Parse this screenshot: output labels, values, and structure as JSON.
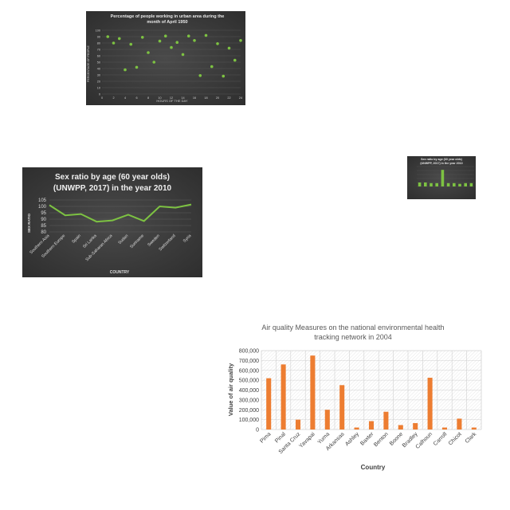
{
  "charts": {
    "scatter": {
      "type": "scatter",
      "title_line1": "Percentage of people working in urban area during the",
      "title_line2": "month of April 1950",
      "xlabel": "HOURS OF THE DAY",
      "ylabel": "PERCENTAGE OF PEOPLE",
      "xlim": [
        0,
        24
      ],
      "ylim": [
        0,
        100
      ],
      "xticks": [
        0,
        2,
        4,
        6,
        8,
        10,
        12,
        14,
        16,
        18,
        20,
        22,
        24
      ],
      "yticks": [
        0,
        10,
        20,
        30,
        40,
        50,
        60,
        70,
        80,
        90,
        100
      ],
      "grid": "horizontal",
      "marker_color": "#7dc242",
      "points": [
        {
          "x": 1,
          "y": 90
        },
        {
          "x": 2,
          "y": 80
        },
        {
          "x": 3,
          "y": 87
        },
        {
          "x": 4,
          "y": 38
        },
        {
          "x": 5,
          "y": 78
        },
        {
          "x": 6,
          "y": 42
        },
        {
          "x": 7,
          "y": 89
        },
        {
          "x": 8,
          "y": 65
        },
        {
          "x": 9,
          "y": 50
        },
        {
          "x": 10,
          "y": 83
        },
        {
          "x": 11,
          "y": 91
        },
        {
          "x": 12,
          "y": 73
        },
        {
          "x": 13,
          "y": 81
        },
        {
          "x": 14,
          "y": 62
        },
        {
          "x": 15,
          "y": 91
        },
        {
          "x": 16,
          "y": 84
        },
        {
          "x": 17,
          "y": 29
        },
        {
          "x": 18,
          "y": 92
        },
        {
          "x": 19,
          "y": 43
        },
        {
          "x": 20,
          "y": 79
        },
        {
          "x": 21,
          "y": 28
        },
        {
          "x": 22,
          "y": 72
        },
        {
          "x": 23,
          "y": 53
        },
        {
          "x": 24,
          "y": 84
        }
      ]
    },
    "sex_ratio_line": {
      "type": "line",
      "title_line1": "Sex ratio by age (60 year olds)",
      "title_line2": "(UNWPP, 2017) in the year 2010",
      "xlabel": "COUNTRY",
      "ylabel": "SEX RATIO",
      "ylim": [
        80,
        105
      ],
      "yticks": [
        80,
        85,
        90,
        95,
        100,
        105
      ],
      "grid": "horizontal",
      "line_color": "#7dc242",
      "categories": [
        "Southern Asia",
        "Southern Europe",
        "Spain",
        "Sri Lanka",
        "Sub-Saharan Africa",
        "Sudan",
        "Suriname",
        "Sweden",
        "Switzerland",
        "Syria"
      ],
      "values": [
        101,
        93,
        94,
        88,
        89,
        93.5,
        88.5,
        100,
        99,
        101.5
      ],
      "tick_labels_shown": [
        "Southern Asia",
        "Southern Europe",
        "Spain",
        "Sri Lanka",
        "Sub-Saharan Africa",
        "Sudan",
        "Suriname",
        "Sweden",
        "Switzerland",
        "Syria"
      ]
    },
    "sex_ratio_bar": {
      "type": "bar",
      "title_line1": "Sex ratio by age (60 year olds)",
      "title_line2": "(UNWPP, 2017) in the year 2010",
      "bar_color": "#7dc242",
      "values": [
        6,
        6,
        5,
        5,
        25,
        5,
        5,
        4,
        5,
        5
      ],
      "ylim": [
        0,
        30
      ]
    },
    "air_quality": {
      "type": "bar",
      "title_line1": "Air quality Measures on the national environmental health",
      "title_line2": "tracking network in 2004",
      "xlabel": "Country",
      "ylabel": "Value of air quality",
      "ylim": [
        0,
        800000
      ],
      "yticks": [
        "0",
        "100,000",
        "200,000",
        "300,000",
        "400,000",
        "500,000",
        "600,000",
        "700,000",
        "800,000"
      ],
      "grid": "both",
      "bar_color": "#ed7d31",
      "categories": [
        "Pima",
        "Pinal",
        "Santa Cruz",
        "Yavapai",
        "Yuma",
        "Arkansas",
        "Ashley",
        "Baxter",
        "Benton",
        "Boone",
        "Bradley",
        "Calhoun",
        "Carroll",
        "Chicot",
        "Clark"
      ],
      "values": [
        520000,
        660000,
        100000,
        750000,
        200000,
        450000,
        20000,
        85000,
        180000,
        45000,
        65000,
        525000,
        20000,
        110000,
        20000
      ]
    }
  }
}
